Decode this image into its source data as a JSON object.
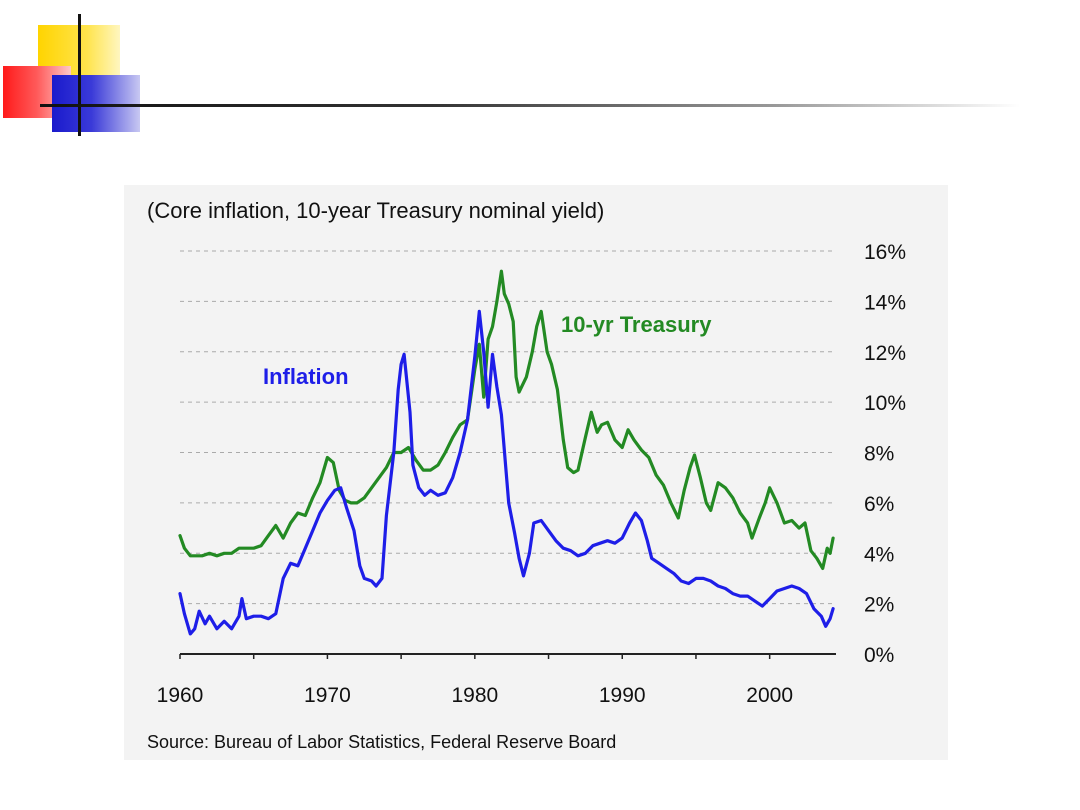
{
  "chart_data": {
    "type": "line",
    "title": "(Core inflation, 10-year Treasury nominal yield)",
    "source": "Source: Bureau of Labor Statistics, Federal Reserve Board",
    "xlim": [
      1960,
      2004.5
    ],
    "ylim": [
      0,
      16
    ],
    "x_ticks": [
      1960,
      1970,
      1980,
      1990,
      2000
    ],
    "x_tick_labels": [
      "1960",
      "1970",
      "1980",
      "1990",
      "2000"
    ],
    "y_ticks": [
      0,
      2,
      4,
      6,
      8,
      10,
      12,
      14,
      16
    ],
    "y_tick_labels": [
      "0%",
      "2%",
      "4%",
      "6%",
      "8%",
      "10%",
      "12%",
      "14%",
      "16%"
    ],
    "grid": true,
    "series": [
      {
        "name": "Inflation",
        "color": "#1e1ee8",
        "points": [
          [
            1960.0,
            2.4
          ],
          [
            1960.3,
            1.6
          ],
          [
            1960.7,
            0.8
          ],
          [
            1961.0,
            1.0
          ],
          [
            1961.3,
            1.7
          ],
          [
            1961.7,
            1.2
          ],
          [
            1962.0,
            1.5
          ],
          [
            1962.5,
            1.0
          ],
          [
            1963.0,
            1.3
          ],
          [
            1963.5,
            1.0
          ],
          [
            1964.0,
            1.5
          ],
          [
            1964.2,
            2.2
          ],
          [
            1964.5,
            1.4
          ],
          [
            1965.0,
            1.5
          ],
          [
            1965.5,
            1.5
          ],
          [
            1966.0,
            1.4
          ],
          [
            1966.5,
            1.6
          ],
          [
            1967.0,
            3.0
          ],
          [
            1967.5,
            3.6
          ],
          [
            1968.0,
            3.5
          ],
          [
            1968.5,
            4.2
          ],
          [
            1969.0,
            4.9
          ],
          [
            1969.5,
            5.6
          ],
          [
            1970.0,
            6.1
          ],
          [
            1970.5,
            6.5
          ],
          [
            1970.9,
            6.6
          ],
          [
            1971.3,
            5.8
          ],
          [
            1971.8,
            4.9
          ],
          [
            1972.2,
            3.5
          ],
          [
            1972.5,
            3.0
          ],
          [
            1973.0,
            2.9
          ],
          [
            1973.3,
            2.7
          ],
          [
            1973.7,
            3.0
          ],
          [
            1974.0,
            5.5
          ],
          [
            1974.5,
            8.0
          ],
          [
            1974.8,
            10.5
          ],
          [
            1975.0,
            11.5
          ],
          [
            1975.2,
            11.9
          ],
          [
            1975.6,
            9.6
          ],
          [
            1975.8,
            7.5
          ],
          [
            1976.2,
            6.6
          ],
          [
            1976.6,
            6.3
          ],
          [
            1977.0,
            6.5
          ],
          [
            1977.5,
            6.3
          ],
          [
            1978.0,
            6.4
          ],
          [
            1978.5,
            7.0
          ],
          [
            1979.0,
            8.0
          ],
          [
            1979.5,
            9.3
          ],
          [
            1980.0,
            11.8
          ],
          [
            1980.3,
            13.6
          ],
          [
            1980.6,
            12.0
          ],
          [
            1980.9,
            9.8
          ],
          [
            1981.2,
            11.9
          ],
          [
            1981.5,
            10.6
          ],
          [
            1981.8,
            9.5
          ],
          [
            1982.3,
            6.0
          ],
          [
            1982.7,
            4.8
          ],
          [
            1983.0,
            3.8
          ],
          [
            1983.3,
            3.1
          ],
          [
            1983.7,
            4.0
          ],
          [
            1984.0,
            5.2
          ],
          [
            1984.5,
            5.3
          ],
          [
            1985.0,
            4.9
          ],
          [
            1985.5,
            4.5
          ],
          [
            1986.0,
            4.2
          ],
          [
            1986.5,
            4.1
          ],
          [
            1987.0,
            3.9
          ],
          [
            1987.5,
            4.0
          ],
          [
            1988.0,
            4.3
          ],
          [
            1988.5,
            4.4
          ],
          [
            1989.0,
            4.5
          ],
          [
            1989.5,
            4.4
          ],
          [
            1990.0,
            4.6
          ],
          [
            1990.5,
            5.2
          ],
          [
            1990.9,
            5.6
          ],
          [
            1991.3,
            5.3
          ],
          [
            1991.7,
            4.5
          ],
          [
            1992.0,
            3.8
          ],
          [
            1992.5,
            3.6
          ],
          [
            1993.0,
            3.4
          ],
          [
            1993.5,
            3.2
          ],
          [
            1994.0,
            2.9
          ],
          [
            1994.5,
            2.8
          ],
          [
            1995.0,
            3.0
          ],
          [
            1995.5,
            3.0
          ],
          [
            1996.0,
            2.9
          ],
          [
            1996.5,
            2.7
          ],
          [
            1997.0,
            2.6
          ],
          [
            1997.5,
            2.4
          ],
          [
            1998.0,
            2.3
          ],
          [
            1998.5,
            2.3
          ],
          [
            1999.0,
            2.1
          ],
          [
            1999.5,
            1.9
          ],
          [
            2000.0,
            2.2
          ],
          [
            2000.5,
            2.5
          ],
          [
            2001.0,
            2.6
          ],
          [
            2001.5,
            2.7
          ],
          [
            2002.0,
            2.6
          ],
          [
            2002.5,
            2.4
          ],
          [
            2003.0,
            1.8
          ],
          [
            2003.5,
            1.5
          ],
          [
            2003.8,
            1.1
          ],
          [
            2004.1,
            1.4
          ],
          [
            2004.3,
            1.8
          ]
        ]
      },
      {
        "name": "10-yr Treasury",
        "color": "#238a23",
        "points": [
          [
            1960.0,
            4.7
          ],
          [
            1960.3,
            4.2
          ],
          [
            1960.7,
            3.9
          ],
          [
            1961.0,
            3.9
          ],
          [
            1961.5,
            3.9
          ],
          [
            1962.0,
            4.0
          ],
          [
            1962.5,
            3.9
          ],
          [
            1963.0,
            4.0
          ],
          [
            1963.5,
            4.0
          ],
          [
            1964.0,
            4.2
          ],
          [
            1964.5,
            4.2
          ],
          [
            1965.0,
            4.2
          ],
          [
            1965.5,
            4.3
          ],
          [
            1966.0,
            4.7
          ],
          [
            1966.5,
            5.1
          ],
          [
            1967.0,
            4.6
          ],
          [
            1967.5,
            5.2
          ],
          [
            1968.0,
            5.6
          ],
          [
            1968.5,
            5.5
          ],
          [
            1969.0,
            6.2
          ],
          [
            1969.5,
            6.8
          ],
          [
            1970.0,
            7.8
          ],
          [
            1970.4,
            7.6
          ],
          [
            1970.8,
            6.5
          ],
          [
            1971.2,
            6.1
          ],
          [
            1971.6,
            6.0
          ],
          [
            1972.0,
            6.0
          ],
          [
            1972.5,
            6.2
          ],
          [
            1973.0,
            6.6
          ],
          [
            1973.5,
            7.0
          ],
          [
            1974.0,
            7.4
          ],
          [
            1974.5,
            8.0
          ],
          [
            1975.0,
            8.0
          ],
          [
            1975.5,
            8.2
          ],
          [
            1976.0,
            7.7
          ],
          [
            1976.5,
            7.3
          ],
          [
            1977.0,
            7.3
          ],
          [
            1977.5,
            7.5
          ],
          [
            1978.0,
            8.0
          ],
          [
            1978.5,
            8.6
          ],
          [
            1979.0,
            9.1
          ],
          [
            1979.5,
            9.3
          ],
          [
            1979.8,
            10.5
          ],
          [
            1980.0,
            11.3
          ],
          [
            1980.3,
            12.3
          ],
          [
            1980.6,
            10.2
          ],
          [
            1980.9,
            12.5
          ],
          [
            1981.2,
            13.0
          ],
          [
            1981.5,
            14.0
          ],
          [
            1981.8,
            15.2
          ],
          [
            1982.0,
            14.3
          ],
          [
            1982.3,
            13.9
          ],
          [
            1982.6,
            13.2
          ],
          [
            1982.8,
            11.0
          ],
          [
            1983.0,
            10.4
          ],
          [
            1983.5,
            11.0
          ],
          [
            1983.9,
            12.0
          ],
          [
            1984.2,
            13.0
          ],
          [
            1984.5,
            13.6
          ],
          [
            1984.9,
            12.0
          ],
          [
            1985.2,
            11.5
          ],
          [
            1985.6,
            10.5
          ],
          [
            1986.0,
            8.5
          ],
          [
            1986.3,
            7.4
          ],
          [
            1986.7,
            7.2
          ],
          [
            1987.0,
            7.3
          ],
          [
            1987.5,
            8.6
          ],
          [
            1987.9,
            9.6
          ],
          [
            1988.3,
            8.8
          ],
          [
            1988.6,
            9.1
          ],
          [
            1989.0,
            9.2
          ],
          [
            1989.5,
            8.5
          ],
          [
            1990.0,
            8.2
          ],
          [
            1990.4,
            8.9
          ],
          [
            1990.8,
            8.5
          ],
          [
            1991.3,
            8.1
          ],
          [
            1991.8,
            7.8
          ],
          [
            1992.3,
            7.1
          ],
          [
            1992.8,
            6.7
          ],
          [
            1993.3,
            6.0
          ],
          [
            1993.8,
            5.4
          ],
          [
            1994.2,
            6.5
          ],
          [
            1994.6,
            7.4
          ],
          [
            1994.9,
            7.9
          ],
          [
            1995.3,
            7.0
          ],
          [
            1995.7,
            6.0
          ],
          [
            1996.0,
            5.7
          ],
          [
            1996.5,
            6.8
          ],
          [
            1997.0,
            6.6
          ],
          [
            1997.5,
            6.2
          ],
          [
            1998.0,
            5.6
          ],
          [
            1998.5,
            5.2
          ],
          [
            1998.8,
            4.6
          ],
          [
            1999.3,
            5.4
          ],
          [
            1999.7,
            6.0
          ],
          [
            2000.0,
            6.6
          ],
          [
            2000.5,
            6.0
          ],
          [
            2001.0,
            5.2
          ],
          [
            2001.5,
            5.3
          ],
          [
            2002.0,
            5.0
          ],
          [
            2002.4,
            5.2
          ],
          [
            2002.8,
            4.1
          ],
          [
            2003.2,
            3.8
          ],
          [
            2003.6,
            3.4
          ],
          [
            2003.9,
            4.2
          ],
          [
            2004.1,
            4.0
          ],
          [
            2004.3,
            4.6
          ]
        ]
      }
    ],
    "annotations": [
      {
        "text": "Inflation",
        "series": 0
      },
      {
        "text": "10-yr Treasury",
        "series": 1
      }
    ]
  }
}
